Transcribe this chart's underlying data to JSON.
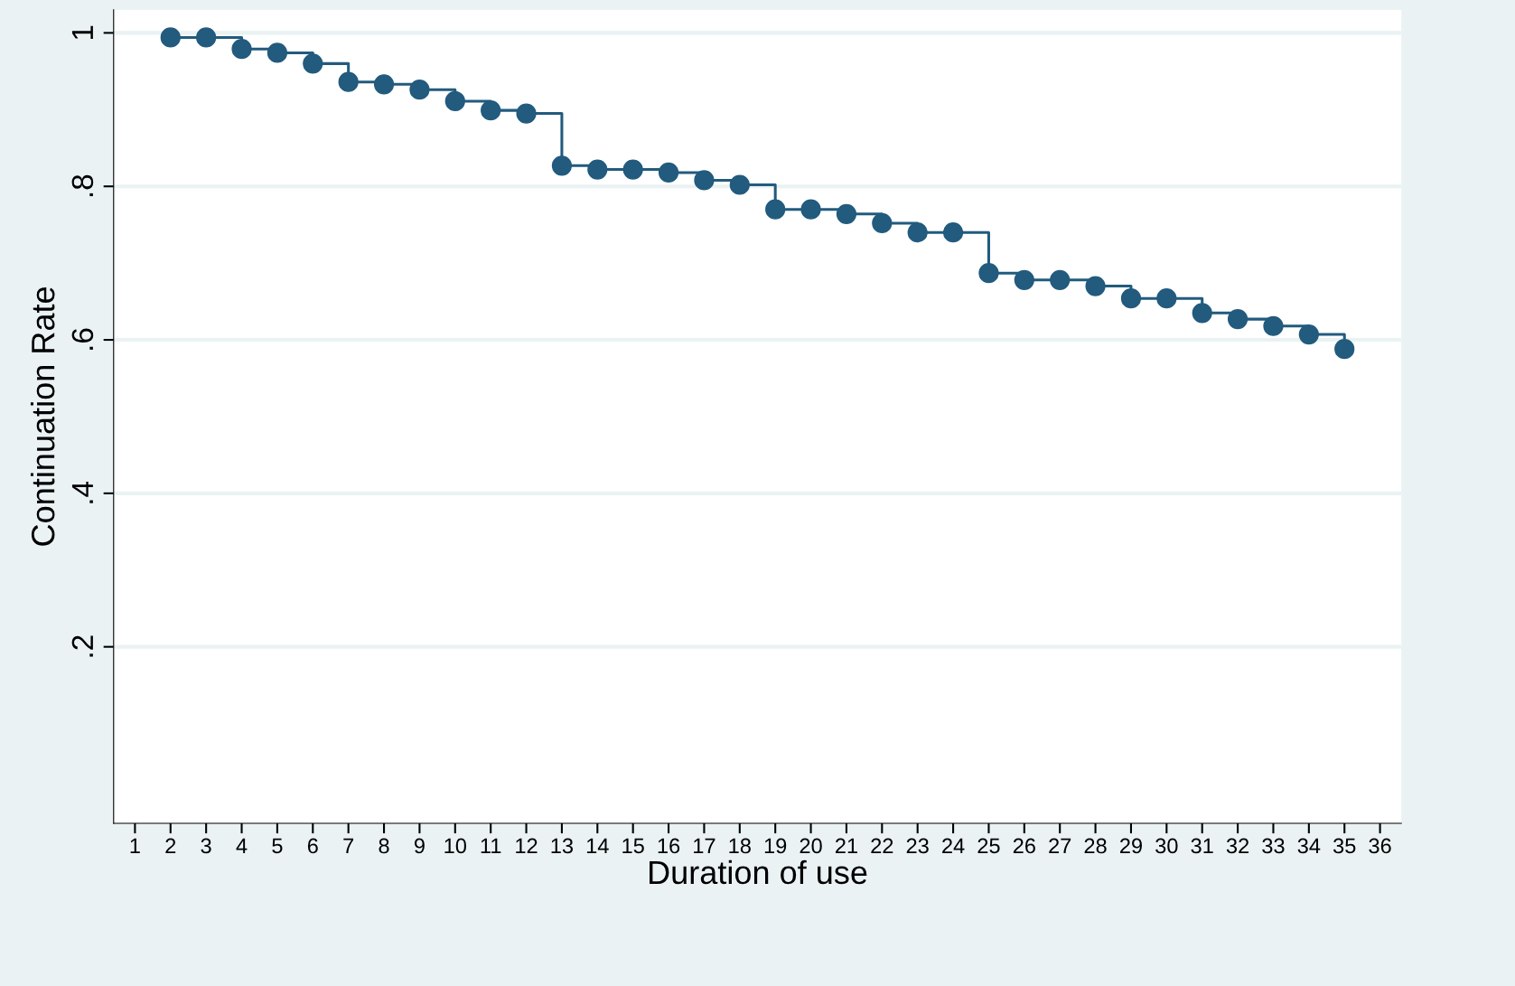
{
  "chart_data": {
    "type": "step",
    "xlabel": "Duration of use",
    "ylabel": "Continuation Rate",
    "series": [
      {
        "color": "#225b7e",
        "x": [
          2,
          3,
          4,
          5,
          6,
          7,
          8,
          9,
          10,
          11,
          12,
          13,
          14,
          15,
          16,
          17,
          18,
          19,
          20,
          21,
          22,
          23,
          24,
          25,
          26,
          27,
          28,
          29,
          30,
          31,
          32,
          33,
          34,
          35
        ],
        "values": [
          0.994,
          0.994,
          0.979,
          0.974,
          0.96,
          0.936,
          0.933,
          0.926,
          0.911,
          0.899,
          0.895,
          0.827,
          0.822,
          0.822,
          0.818,
          0.808,
          0.802,
          0.77,
          0.77,
          0.764,
          0.752,
          0.74,
          0.74,
          0.687,
          0.678,
          0.678,
          0.67,
          0.654,
          0.654,
          0.635,
          0.627,
          0.618,
          0.607,
          0.588
        ]
      }
    ],
    "marker": "circle",
    "line_style": "solid",
    "grid": "y",
    "xlim": [
      0.4,
      36.6
    ],
    "xticks": [
      1,
      2,
      3,
      4,
      5,
      6,
      7,
      8,
      9,
      10,
      11,
      12,
      13,
      14,
      15,
      16,
      17,
      18,
      19,
      20,
      21,
      22,
      23,
      24,
      25,
      26,
      27,
      28,
      29,
      30,
      31,
      32,
      33,
      34,
      35,
      36
    ],
    "ylim": [
      -0.03,
      1.03
    ],
    "yticks": [
      {
        "value": 0.2,
        "label": ".2"
      },
      {
        "value": 0.4,
        "label": ".4"
      },
      {
        "value": 0.6,
        "label": ".6"
      },
      {
        "value": 0.8,
        "label": ".8"
      },
      {
        "value": 1,
        "label": "1"
      }
    ]
  }
}
